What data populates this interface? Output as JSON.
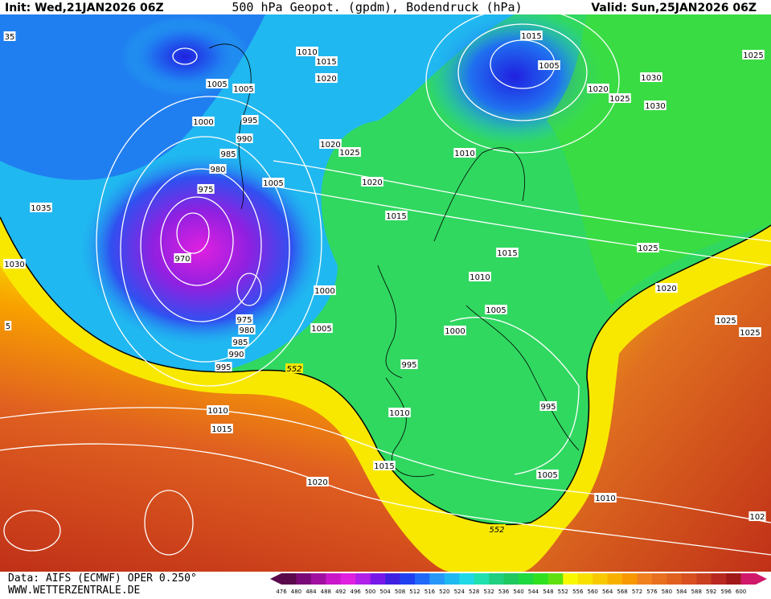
{
  "header": {
    "init": "Init: Wed,21JAN2026 06Z",
    "title": "500 hPa Geopot. (gpdm), Bodendruck (hPa)",
    "valid": "Valid: Sun,25JAN2026 06Z"
  },
  "footer": {
    "data": "Data: AIFS (ECMWF) OPER 0.250°",
    "site": "WWW.WETTERZENTRALE.DE"
  },
  "contour_552_labels": [
    "552",
    "552"
  ],
  "isobar_labels": [
    "1015",
    "1005",
    "1025",
    "1030",
    "1020",
    "1025",
    "1030",
    "1010",
    "1015",
    "1020",
    "1005",
    "1005",
    "1000",
    "995",
    "990",
    "985",
    "980",
    "975",
    "1005",
    "1020",
    "1025",
    "1020",
    "1015",
    "1010",
    "1035",
    "1030",
    "970",
    "1000",
    "1015",
    "1010",
    "1025",
    "1020",
    "1005",
    "975",
    "980",
    "985",
    "990",
    "995",
    "1005",
    "1000",
    "995",
    "1025",
    "1025",
    "995",
    "1010",
    "1015",
    "1010",
    "1015",
    "1005",
    "1020",
    "1010",
    "35",
    "5",
    "102"
  ],
  "colorbar": {
    "values": [
      476,
      480,
      484,
      488,
      492,
      496,
      500,
      504,
      508,
      512,
      516,
      520,
      524,
      528,
      532,
      536,
      540,
      544,
      548,
      552,
      556,
      560,
      564,
      568,
      572,
      576,
      580,
      584,
      588,
      592,
      596,
      600
    ],
    "colors": [
      "#5a0a4a",
      "#7a0a78",
      "#a010a0",
      "#c818c8",
      "#e020e0",
      "#b020e8",
      "#7818e8",
      "#4020e0",
      "#2040f0",
      "#2068f8",
      "#2898f8",
      "#20b8f0",
      "#20d8e8",
      "#20e0b0",
      "#20d080",
      "#20c860",
      "#20d840",
      "#30e020",
      "#60e010",
      "#f8f800",
      "#f8e000",
      "#f8c800",
      "#f8b000",
      "#f89800",
      "#f08020",
      "#e87020",
      "#e06020",
      "#d85020",
      "#c84020",
      "#b82820",
      "#a01818",
      "#d0186a"
    ]
  }
}
